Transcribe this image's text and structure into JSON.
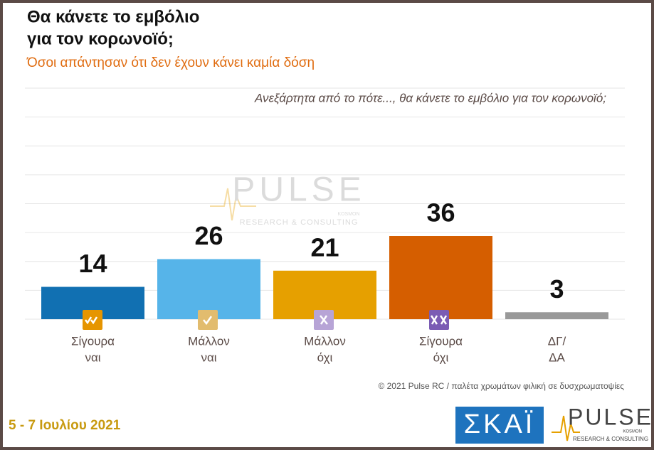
{
  "chart_data": {
    "type": "bar",
    "title": [
      "Θα κάνετε το εμβόλιο",
      "για τον κορωνοϊό;"
    ],
    "subtitle": "Όσοι απάντησαν ότι δεν έχουν κάνει καμία δόση",
    "question": "Ανεξάρτητα από το πότε..., θα κάνετε το εμβόλιο για τον κορωνοϊό;",
    "categories": [
      [
        "Σίγουρα",
        "ναι"
      ],
      [
        "Μάλλον",
        "ναι"
      ],
      [
        "Μάλλον",
        "όχι"
      ],
      [
        "Σίγουρα",
        "όχι"
      ],
      [
        "ΔΓ/",
        "ΔΑ"
      ]
    ],
    "values": [
      14,
      26,
      21,
      36,
      3
    ],
    "colors": [
      "#1170b2",
      "#56b4e9",
      "#e6a000",
      "#d55e00",
      "#999999"
    ],
    "ylim": [
      0,
      100
    ],
    "grid": true,
    "source": "© 2021 Pulse RC  /  παλέτα χρωμάτων φιλική σε δυσχρωματοψίες",
    "date": "5 - 7 Ιουλίου  2021",
    "logos": {
      "skai": "ΣΚΑΪ",
      "pulse": "PULSE",
      "pulse_tagline": "RESEARCH & CONSULTING",
      "pulse_sub": "KOSMON"
    }
  }
}
